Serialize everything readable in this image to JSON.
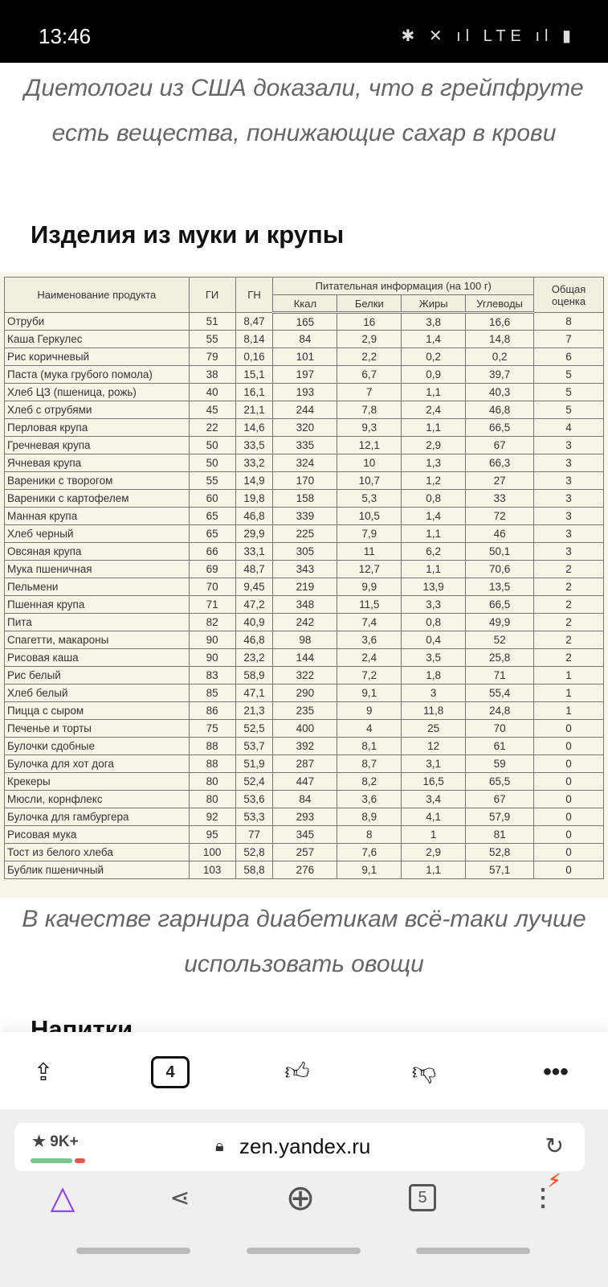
{
  "status": {
    "time": "13:46",
    "icons": "✱ ✕ ıl LTE ıl ▮"
  },
  "article": {
    "caption1": "Диетологи из США доказали, что в грейпфруте есть вещества, понижающие сахар в крови",
    "heading": "Изделия из муки и крупы",
    "caption2": "В качестве гарнира диабетикам всё-таки лучше использовать овощи",
    "next_heading": "Напитки"
  },
  "table": {
    "headers": {
      "name": "Наименование продукта",
      "gi": "ГИ",
      "gn": "ГН",
      "group": "Питательная информация (на 100 г)",
      "kcal": "Ккал",
      "protein": "Белки",
      "fat": "Жиры",
      "carbs": "Углеводы",
      "score": "Общая оценка"
    },
    "rows": [
      [
        "Отруби",
        "51",
        "8,47",
        "165",
        "16",
        "3,8",
        "16,6",
        "8"
      ],
      [
        "Каша Геркулес",
        "55",
        "8,14",
        "84",
        "2,9",
        "1,4",
        "14,8",
        "7"
      ],
      [
        "Рис коричневый",
        "79",
        "0,16",
        "101",
        "2,2",
        "0,2",
        "0,2",
        "6"
      ],
      [
        "Паста (мука грубого помола)",
        "38",
        "15,1",
        "197",
        "6,7",
        "0,9",
        "39,7",
        "5"
      ],
      [
        "Хлеб ЦЗ (пшеница, рожь)",
        "40",
        "16,1",
        "193",
        "7",
        "1,1",
        "40,3",
        "5"
      ],
      [
        "Хлеб с отрубями",
        "45",
        "21,1",
        "244",
        "7,8",
        "2,4",
        "46,8",
        "5"
      ],
      [
        "Перловая крупа",
        "22",
        "14,6",
        "320",
        "9,3",
        "1,1",
        "66,5",
        "4"
      ],
      [
        "Гречневая крупа",
        "50",
        "33,5",
        "335",
        "12,1",
        "2,9",
        "67",
        "3"
      ],
      [
        "Ячневая крупа",
        "50",
        "33,2",
        "324",
        "10",
        "1,3",
        "66,3",
        "3"
      ],
      [
        "Вареники с творогом",
        "55",
        "14,9",
        "170",
        "10,7",
        "1,2",
        "27",
        "3"
      ],
      [
        "Вареники с картофелем",
        "60",
        "19,8",
        "158",
        "5,3",
        "0,8",
        "33",
        "3"
      ],
      [
        "Манная крупа",
        "65",
        "46,8",
        "339",
        "10,5",
        "1,4",
        "72",
        "3"
      ],
      [
        "Хлеб черный",
        "65",
        "29,9",
        "225",
        "7,9",
        "1,1",
        "46",
        "3"
      ],
      [
        "Овсяная крупа",
        "66",
        "33,1",
        "305",
        "11",
        "6,2",
        "50,1",
        "3"
      ],
      [
        "Мука пшеничная",
        "69",
        "48,7",
        "343",
        "12,7",
        "1,1",
        "70,6",
        "2"
      ],
      [
        "Пельмени",
        "70",
        "9,45",
        "219",
        "9,9",
        "13,9",
        "13,5",
        "2"
      ],
      [
        "Пшенная крупа",
        "71",
        "47,2",
        "348",
        "11,5",
        "3,3",
        "66,5",
        "2"
      ],
      [
        "Пита",
        "82",
        "40,9",
        "242",
        "7,4",
        "0,8",
        "49,9",
        "2"
      ],
      [
        "Спагетти, макароны",
        "90",
        "46,8",
        "98",
        "3,6",
        "0,4",
        "52",
        "2"
      ],
      [
        "Рисовая каша",
        "90",
        "23,2",
        "144",
        "2,4",
        "3,5",
        "25,8",
        "2"
      ],
      [
        "Рис белый",
        "83",
        "58,9",
        "322",
        "7,2",
        "1,8",
        "71",
        "1"
      ],
      [
        "Хлеб белый",
        "85",
        "47,1",
        "290",
        "9,1",
        "3",
        "55,4",
        "1"
      ],
      [
        "Пицца с сыром",
        "86",
        "21,3",
        "235",
        "9",
        "11,8",
        "24,8",
        "1"
      ],
      [
        "Печенье и торты",
        "75",
        "52,5",
        "400",
        "4",
        "25",
        "70",
        "0"
      ],
      [
        "Булочки сдобные",
        "88",
        "53,7",
        "392",
        "8,1",
        "12",
        "61",
        "0"
      ],
      [
        "Булочка для хот дога",
        "88",
        "51,9",
        "287",
        "8,7",
        "3,1",
        "59",
        "0"
      ],
      [
        "Крекеры",
        "80",
        "52,4",
        "447",
        "8,2",
        "16,5",
        "65,5",
        "0"
      ],
      [
        "Мюсли, корнфлекс",
        "80",
        "53,6",
        "84",
        "3,6",
        "3,4",
        "67",
        "0"
      ],
      [
        "Булочка для гамбургера",
        "92",
        "53,3",
        "293",
        "8,9",
        "4,1",
        "57,9",
        "0"
      ],
      [
        "Рисовая мука",
        "95",
        "77",
        "345",
        "8",
        "1",
        "81",
        "0"
      ],
      [
        "Тост из белого хлеба",
        "100",
        "52,8",
        "257",
        "7,6",
        "2,9",
        "52,8",
        "0"
      ],
      [
        "Бублик пшеничный",
        "103",
        "58,8",
        "276",
        "9,1",
        "1,1",
        "57,1",
        "0"
      ]
    ]
  },
  "actions": {
    "comments_count": "4",
    "share_icon": "share-icon",
    "like_icon": "thumbs-up-icon",
    "dislike_icon": "thumbs-down-icon",
    "more_icon": "more-icon"
  },
  "browser": {
    "rating": "★ 9K+",
    "url": "zen.yandex.ru",
    "tabs_count": "5",
    "accent": "#8a3ffc",
    "alert_color": "#f05a22"
  }
}
